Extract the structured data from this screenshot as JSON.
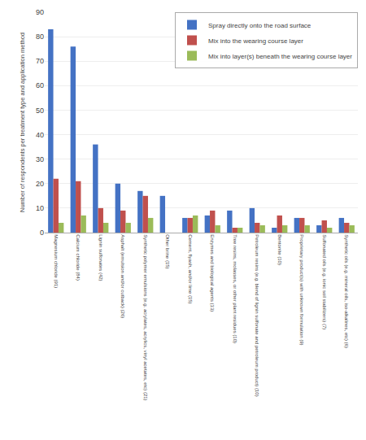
{
  "chart_data": {
    "type": "bar",
    "categories": [
      "Magnesium chloride (91)",
      "Calcium chloride (84)",
      "Lignin sulfonates (42)",
      "Asphalt (emulsion and/or cutback) (26)",
      "Synthetic polymer emulsions (e.g. acrylates, acrylics, vinyl acetates, etc) (21)",
      "Other brine (15)",
      "Cement, flyash, and/or lime (15)",
      "Enzymes and biological agents (13)",
      "Tree resins, molasses, or other plant residues (10)",
      "Petroleum resins (e.g. blend of lignin sulfonate and petroleum product) (10)",
      "Bentonite (10)",
      "Proprietary product(s) with unknown formulation (9)",
      "Sulfonated oils (e.g. ionic soil stabilizers) (7)",
      "Synthetic oils (e.g. mineral oils, iso-alkalines, etc) (6)"
    ],
    "series": [
      {
        "name": "Spray directly onto the road surface",
        "color": "#4472C4",
        "values": [
          83,
          76,
          36,
          20,
          17,
          15,
          6,
          7,
          9,
          10,
          2,
          6,
          3,
          6
        ]
      },
      {
        "name": "Mix into the wearing course layer",
        "color": "#C0504D",
        "values": [
          22,
          21,
          10,
          9,
          15,
          0,
          6,
          9,
          2,
          4,
          7,
          6,
          5,
          4
        ]
      },
      {
        "name": "Mix into layer(s) beneath the wearing course layer",
        "color": "#9BBB59",
        "values": [
          4,
          7,
          4,
          4,
          6,
          0,
          7,
          3,
          2,
          3,
          3,
          3,
          2,
          3
        ]
      }
    ],
    "ylabel": "Number of respondents per treatment type and application method",
    "ylim": [
      0,
      90
    ],
    "yticks": [
      0,
      10,
      20,
      30,
      40,
      50,
      60,
      70,
      80,
      90
    ],
    "grid": true,
    "legend": "upper right"
  }
}
